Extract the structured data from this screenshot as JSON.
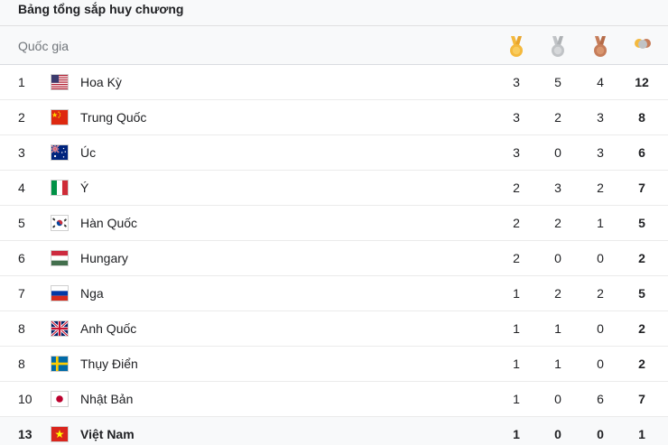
{
  "table_title": "Bảng tổng sắp huy chương",
  "header": {
    "country": "Quốc gia",
    "icons": [
      "gold-medal-icon",
      "silver-medal-icon",
      "bronze-medal-icon",
      "total-medals-icon"
    ]
  },
  "colors": {
    "gold": "#f4b93d",
    "silver": "#c0c3c6",
    "bronze": "#c67d5a",
    "header_bg": "#f8f9fa"
  },
  "rows": [
    {
      "rank": "1",
      "country": "Hoa Kỳ",
      "flag": "flag-usa-icon",
      "gold": "3",
      "silver": "5",
      "bronze": "4",
      "total": "12"
    },
    {
      "rank": "2",
      "country": "Trung Quốc",
      "flag": "flag-china-icon",
      "gold": "3",
      "silver": "2",
      "bronze": "3",
      "total": "8"
    },
    {
      "rank": "3",
      "country": "Úc",
      "flag": "flag-australia-icon",
      "gold": "3",
      "silver": "0",
      "bronze": "3",
      "total": "6"
    },
    {
      "rank": "4",
      "country": "Ý",
      "flag": "flag-italy-icon",
      "gold": "2",
      "silver": "3",
      "bronze": "2",
      "total": "7"
    },
    {
      "rank": "5",
      "country": "Hàn Quốc",
      "flag": "flag-south-korea-icon",
      "gold": "2",
      "silver": "2",
      "bronze": "1",
      "total": "5"
    },
    {
      "rank": "6",
      "country": "Hungary",
      "flag": "flag-hungary-icon",
      "gold": "2",
      "silver": "0",
      "bronze": "0",
      "total": "2"
    },
    {
      "rank": "7",
      "country": "Nga",
      "flag": "flag-russia-icon",
      "gold": "1",
      "silver": "2",
      "bronze": "2",
      "total": "5"
    },
    {
      "rank": "8",
      "country": "Anh Quốc",
      "flag": "flag-uk-icon",
      "gold": "1",
      "silver": "1",
      "bronze": "0",
      "total": "2"
    },
    {
      "rank": "8",
      "country": "Thụy Điển",
      "flag": "flag-sweden-icon",
      "gold": "1",
      "silver": "1",
      "bronze": "0",
      "total": "2"
    },
    {
      "rank": "10",
      "country": "Nhật Bản",
      "flag": "flag-japan-icon",
      "gold": "1",
      "silver": "0",
      "bronze": "6",
      "total": "7"
    },
    {
      "rank": "13",
      "country": "Việt Nam",
      "flag": "flag-vietnam-icon",
      "gold": "1",
      "silver": "0",
      "bronze": "0",
      "total": "1"
    }
  ]
}
